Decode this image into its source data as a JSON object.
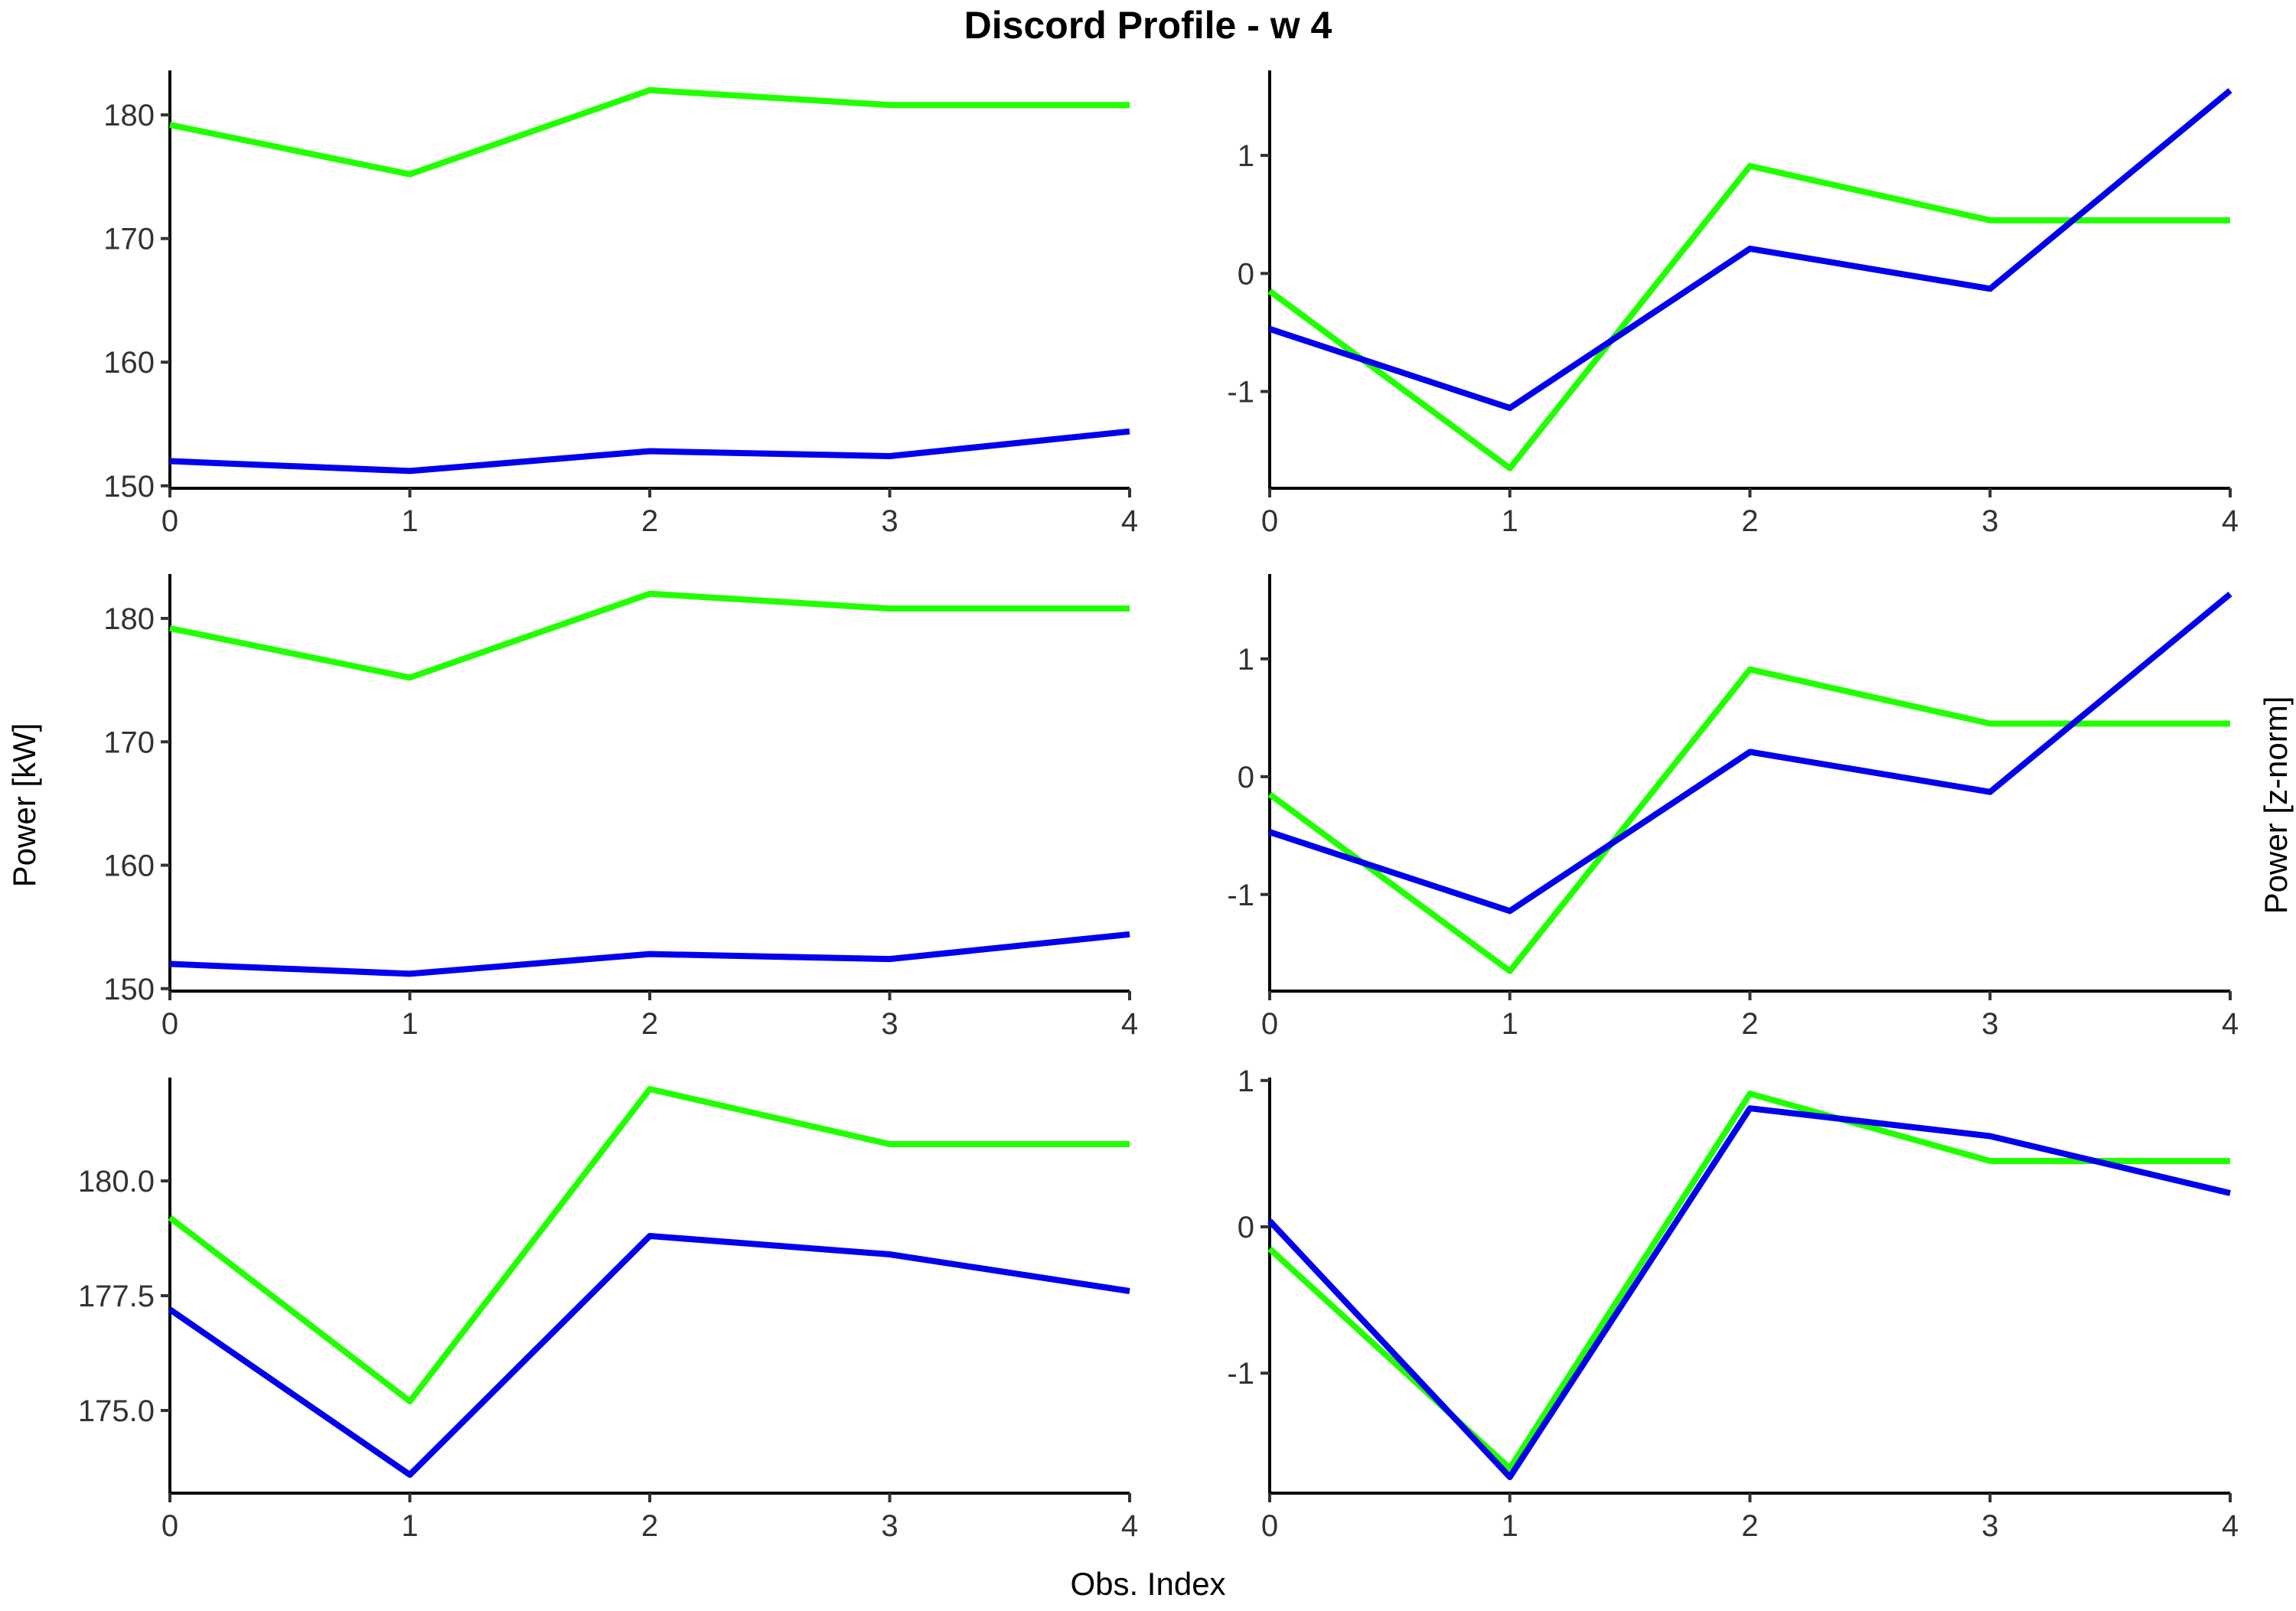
{
  "chart_title": "Discord Profile - w 4",
  "x_axis_title": "Obs. Index",
  "y_axis_title_left": "Power [kW]",
  "y_axis_title_right": "Power [z-norm]",
  "colors": {
    "green": "#22ff00",
    "blue": "#0000ee"
  },
  "chart_data": [
    {
      "type": "line",
      "grid": false,
      "x": [
        0,
        1,
        2,
        3,
        4
      ],
      "xlim": [
        0,
        4
      ],
      "xticks": [
        0,
        1,
        2,
        3,
        4
      ],
      "ylim": [
        149.8,
        183.6
      ],
      "yticks": [
        150,
        160,
        170,
        180
      ],
      "ytick_labels": [
        "150",
        "160",
        "170",
        "180"
      ],
      "series": [
        {
          "color": "#22ff00",
          "values": [
            179.2,
            175.2,
            182.0,
            180.8,
            180.8
          ]
        },
        {
          "color": "#0000ee",
          "values": [
            152.0,
            151.2,
            152.8,
            152.4,
            154.4
          ]
        }
      ]
    },
    {
      "type": "line",
      "grid": false,
      "x": [
        0,
        1,
        2,
        3,
        4
      ],
      "xlim": [
        0,
        4
      ],
      "xticks": [
        0,
        1,
        2,
        3,
        4
      ],
      "ylim": [
        -1.82,
        1.72
      ],
      "yticks": [
        -1,
        0,
        1
      ],
      "ytick_labels": [
        "-1",
        "0",
        "1"
      ],
      "series": [
        {
          "color": "#22ff00",
          "values": [
            -0.15,
            -1.65,
            0.91,
            0.45,
            0.45
          ]
        },
        {
          "color": "#0000ee",
          "values": [
            -0.47,
            -1.14,
            0.21,
            -0.13,
            1.55
          ]
        }
      ]
    },
    {
      "type": "line",
      "grid": false,
      "x": [
        0,
        1,
        2,
        3,
        4
      ],
      "xlim": [
        0,
        4
      ],
      "xticks": [
        0,
        1,
        2,
        3,
        4
      ],
      "ylim": [
        149.8,
        183.6
      ],
      "yticks": [
        150,
        160,
        170,
        180
      ],
      "ytick_labels": [
        "150",
        "160",
        "170",
        "180"
      ],
      "series": [
        {
          "color": "#22ff00",
          "values": [
            179.2,
            175.2,
            182.0,
            180.8,
            180.8
          ]
        },
        {
          "color": "#0000ee",
          "values": [
            152.0,
            151.2,
            152.8,
            152.4,
            154.4
          ]
        }
      ]
    },
    {
      "type": "line",
      "grid": false,
      "x": [
        0,
        1,
        2,
        3,
        4
      ],
      "xlim": [
        0,
        4
      ],
      "xticks": [
        0,
        1,
        2,
        3,
        4
      ],
      "ylim": [
        -1.82,
        1.72
      ],
      "yticks": [
        -1,
        0,
        1
      ],
      "ytick_labels": [
        "-1",
        "0",
        "1"
      ],
      "series": [
        {
          "color": "#22ff00",
          "values": [
            -0.15,
            -1.65,
            0.91,
            0.45,
            0.45
          ]
        },
        {
          "color": "#0000ee",
          "values": [
            -0.47,
            -1.14,
            0.21,
            -0.13,
            1.55
          ]
        }
      ]
    },
    {
      "type": "line",
      "grid": false,
      "x": [
        0,
        1,
        2,
        3,
        4
      ],
      "xlim": [
        0,
        4
      ],
      "xticks": [
        0,
        1,
        2,
        3,
        4
      ],
      "ylim": [
        173.2,
        182.25
      ],
      "yticks": [
        175.0,
        177.5,
        180.0
      ],
      "ytick_labels": [
        "175.0",
        "177.5",
        "180.0"
      ],
      "series": [
        {
          "color": "#22ff00",
          "values": [
            179.2,
            175.2,
            182.0,
            180.8,
            180.8
          ]
        },
        {
          "color": "#0000ee",
          "values": [
            177.2,
            173.6,
            178.8,
            178.4,
            177.6
          ]
        }
      ]
    },
    {
      "type": "line",
      "grid": false,
      "x": [
        0,
        1,
        2,
        3,
        4
      ],
      "xlim": [
        0,
        4
      ],
      "xticks": [
        0,
        1,
        2,
        3,
        4
      ],
      "ylim": [
        -1.82,
        1.02
      ],
      "yticks": [
        -1,
        0,
        1
      ],
      "ytick_labels": [
        "-1",
        "0",
        "1"
      ],
      "series": [
        {
          "color": "#22ff00",
          "values": [
            -0.15,
            -1.65,
            0.91,
            0.45,
            0.45
          ]
        },
        {
          "color": "#0000ee",
          "values": [
            0.04,
            -1.71,
            0.81,
            0.62,
            0.23
          ]
        }
      ]
    }
  ]
}
